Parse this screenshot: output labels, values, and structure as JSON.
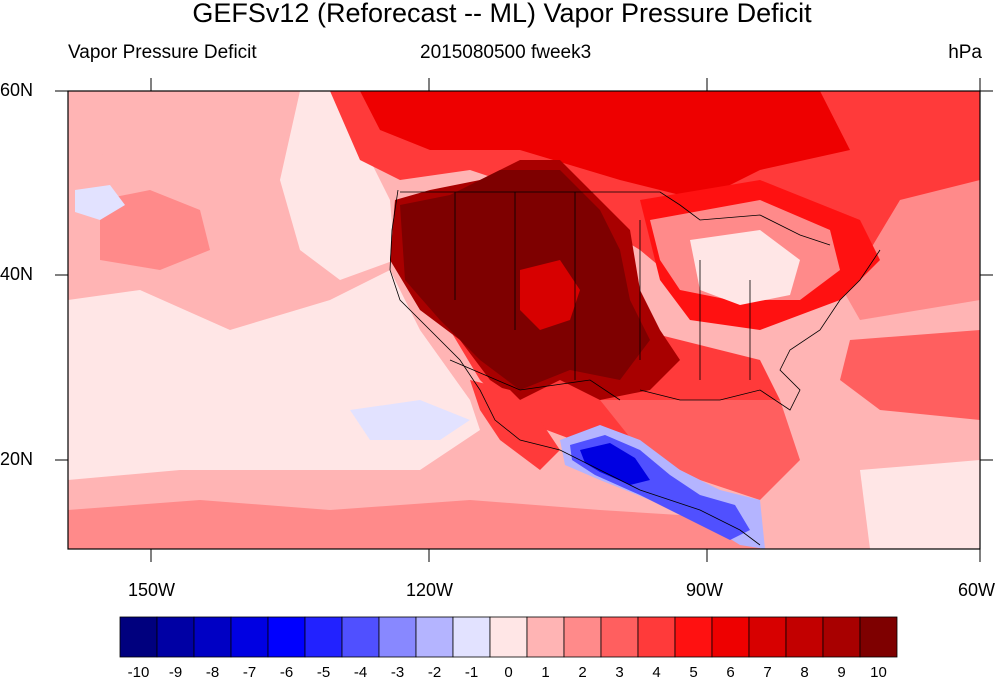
{
  "title": "GEFSv12 (Reforecast -- ML) Vapor Pressure Deficit",
  "subtitle_left": "Vapor Pressure Deficit",
  "subtitle_center": "2015080500 fweek3",
  "subtitle_right": "hPa",
  "lat_labels": [
    "60N",
    "40N",
    "20N"
  ],
  "lon_labels": [
    "150W",
    "120W",
    "90W",
    "60W"
  ],
  "colorbar": {
    "labels": [
      "-10",
      "-9",
      "-8",
      "-7",
      "-6",
      "-5",
      "-4",
      "-3",
      "-2",
      "-1",
      "0",
      "1",
      "2",
      "3",
      "4",
      "5",
      "6",
      "7",
      "8",
      "9",
      "10"
    ],
    "colors": [
      "#00007e",
      "#0000a4",
      "#0000c4",
      "#0000e2",
      "#0000ff",
      "#2222ff",
      "#5050ff",
      "#8888ff",
      "#b4b4ff",
      "#e2e2ff",
      "#ffe6e6",
      "#ffb4b4",
      "#ff8a8a",
      "#ff5f5f",
      "#ff3a3a",
      "#ff1111",
      "#ee0000",
      "#d70000",
      "#c20000",
      "#a80000",
      "#7e0000"
    ]
  }
}
